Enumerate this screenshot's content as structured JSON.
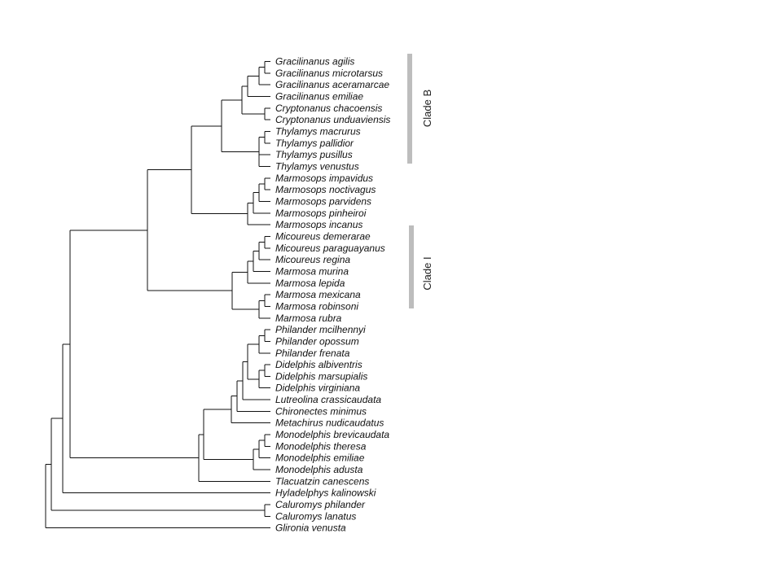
{
  "taxa": [
    "Gracilinanus  agilis",
    "Gracilinanus  microtarsus",
    "Gracilinanus  aceramarcae",
    "Gracilinanus  emiliae",
    "Cryptonanus  chacoensis",
    "Cryptonanus  unduaviensis",
    "Thylamys  macrurus",
    "Thylamys  pallidior",
    "Thylamys  pusillus",
    "Thylamys  venustus",
    "Marmosops  impavidus",
    "Marmosops  noctivagus",
    "Marmosops  parvidens",
    "Marmosops  pinheiroi",
    "Marmosops  incanus",
    "Micoureus  demerarae",
    "Micoureus  paraguayanus",
    "Micoureus  regina",
    "Marmosa  murina",
    "Marmosa  lepida",
    "Marmosa  mexicana",
    "Marmosa  robinsoni",
    "Marmosa  rubra",
    "Philander  mcilhennyi",
    "Philander  opossum",
    "Philander  frenata",
    "Didelphis  albiventris",
    "Didelphis  marsupialis",
    "Didelphis  virginiana",
    "Lutreolina  crassicaudata",
    "Chironectes  minimus",
    "Metachirus  nudicaudatus",
    "Monodelphis  brevicaudata",
    "Monodelphis  theresa",
    "Monodelphis  emiliae",
    "Monodelphis  adusta",
    "Tlacuatzin  canescens",
    "Hyladelphys  kalinowski",
    "Caluromys  philander",
    "Caluromys  lanatus",
    "Glironia  venusta"
  ],
  "clades": {
    "clade_b": {
      "label": "Clade B"
    },
    "clade_i": {
      "label": "Clade I"
    }
  }
}
